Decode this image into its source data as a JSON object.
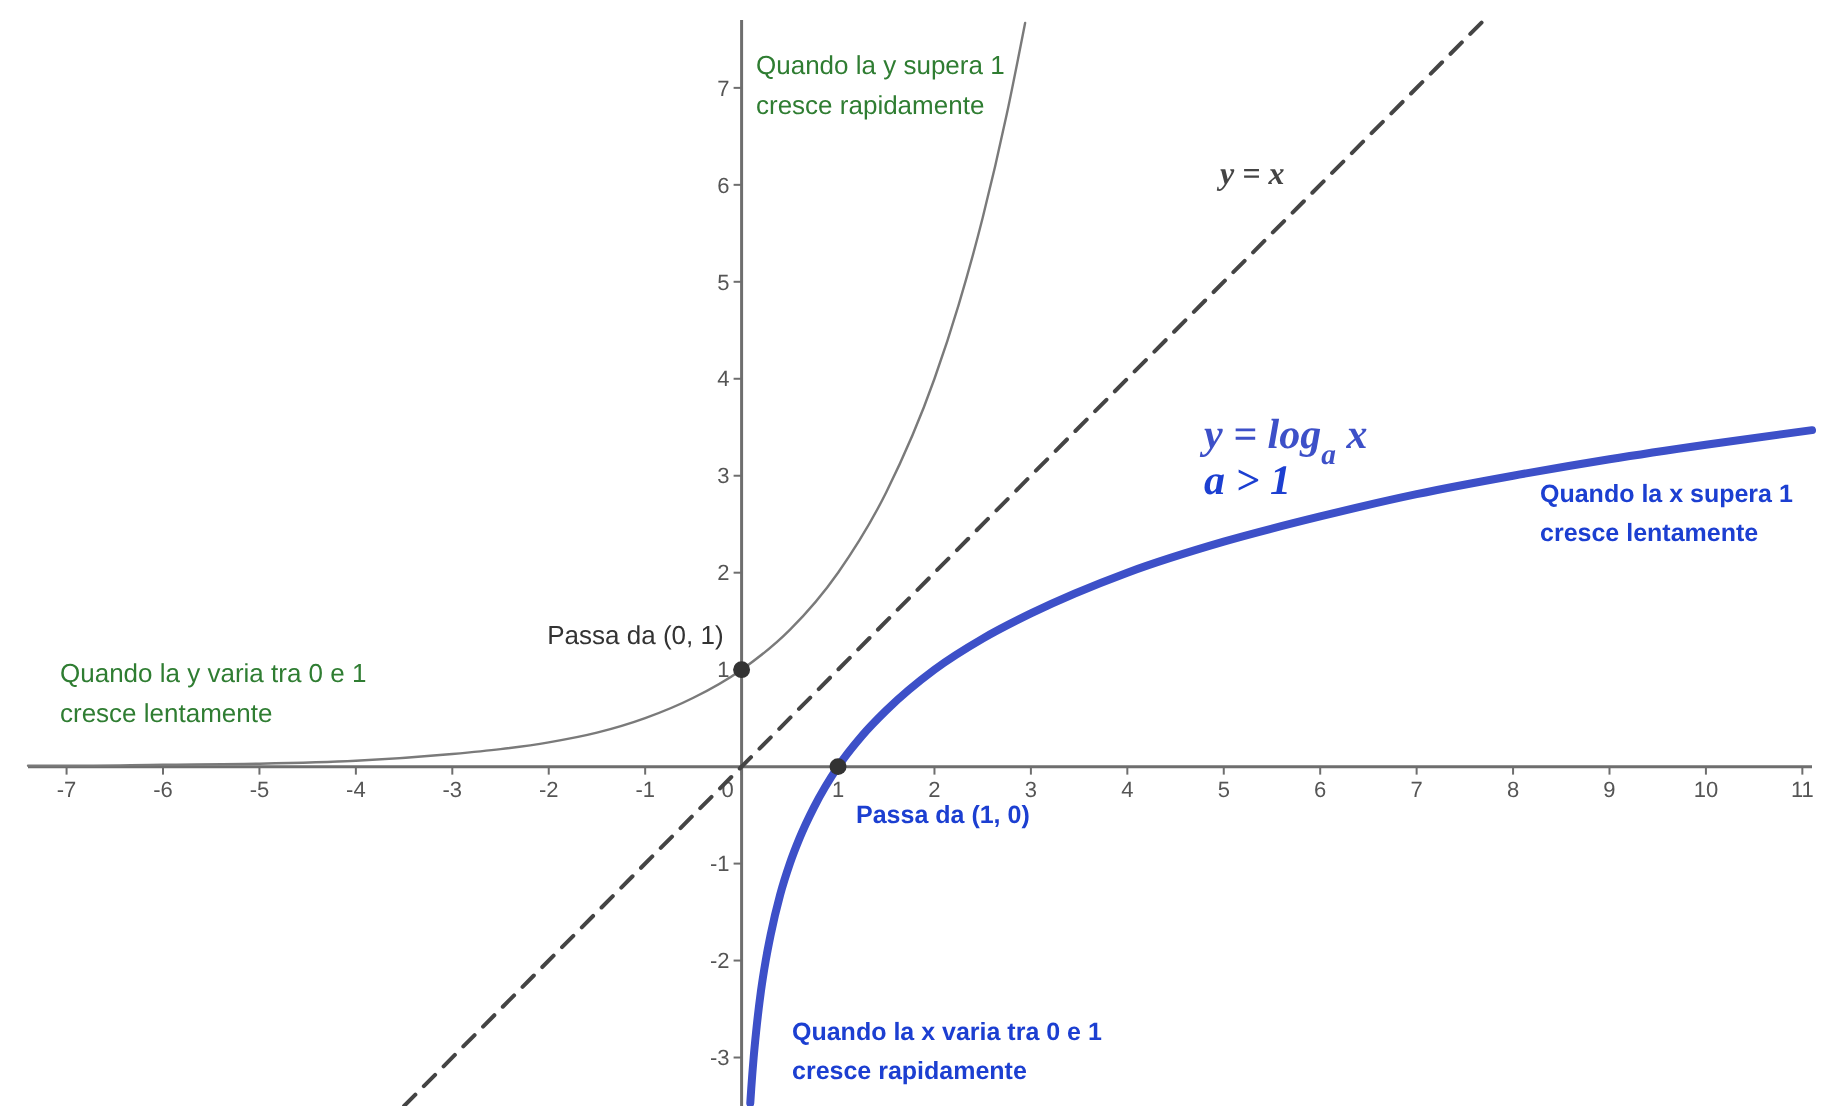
{
  "chart_data": {
    "type": "line",
    "xlim": [
      -7.4,
      11.1
    ],
    "ylim": [
      -3.5,
      7.7
    ],
    "xticks": [
      -7,
      -6,
      -5,
      -4,
      -3,
      -2,
      -1,
      0,
      1,
      2,
      3,
      4,
      5,
      6,
      7,
      8,
      9,
      10,
      11
    ],
    "yticks": [
      -3,
      -2,
      -1,
      1,
      2,
      3,
      4,
      5,
      6,
      7
    ],
    "series": [
      {
        "type": "line",
        "color": "#7a7a7a",
        "x": [
          -7.4,
          -7,
          -6,
          -5,
          -4,
          -3,
          -2.5,
          -2,
          -1.5,
          -1,
          -0.5,
          0,
          0.5,
          1,
          1.5,
          2,
          2.25,
          2.5,
          2.75,
          2.94
        ],
        "values": [
          0.01,
          0.01,
          0.02,
          0.03,
          0.06,
          0.13,
          0.18,
          0.25,
          0.35,
          0.5,
          0.71,
          1,
          1.41,
          2,
          2.83,
          4,
          4.76,
          5.66,
          6.73,
          7.67
        ]
      },
      {
        "type": "line",
        "name": "y = x",
        "color": "#444444",
        "line_style": "dashed",
        "x": [
          -3.5,
          7.7
        ],
        "values": [
          -3.5,
          7.7
        ]
      },
      {
        "type": "line",
        "name": "y = log$_{a}$ x",
        "color": "#3d50c8",
        "x": [
          0.09,
          0.1,
          0.125,
          0.15,
          0.2,
          0.25,
          0.3,
          0.4,
          0.5,
          0.6,
          0.75,
          1,
          1.25,
          1.5,
          2,
          2.5,
          3,
          4,
          5,
          6,
          7,
          8,
          9,
          10,
          11.1
        ],
        "values": [
          -3.47,
          -3.32,
          -3,
          -2.74,
          -2.32,
          -2,
          -1.74,
          -1.32,
          -1,
          -0.74,
          -0.42,
          0,
          0.32,
          0.58,
          1,
          1.32,
          1.58,
          2,
          2.32,
          2.58,
          2.81,
          3,
          3.17,
          3.32,
          3.47
        ]
      },
      {
        "type": "scatter",
        "color": "#333333",
        "marker": "circle",
        "x": [
          0,
          1
        ],
        "values": [
          1,
          0
        ]
      }
    ],
    "annotations": [
      "Quando la y supera 1\ncresce rapidamente",
      "Quando la y varia tra 0 e 1\ncresce lentamente",
      {
        "text": "Passa da (0, 1)",
        "x": 0,
        "y": 1
      },
      "a > 1",
      "Quando la x supera 1\ncresce lentamente",
      {
        "text": "Passa da (1, 0)",
        "x": 1,
        "y": 0
      },
      "Quando la x varia tra 0 e 1\ncresce rapidamente"
    ]
  }
}
